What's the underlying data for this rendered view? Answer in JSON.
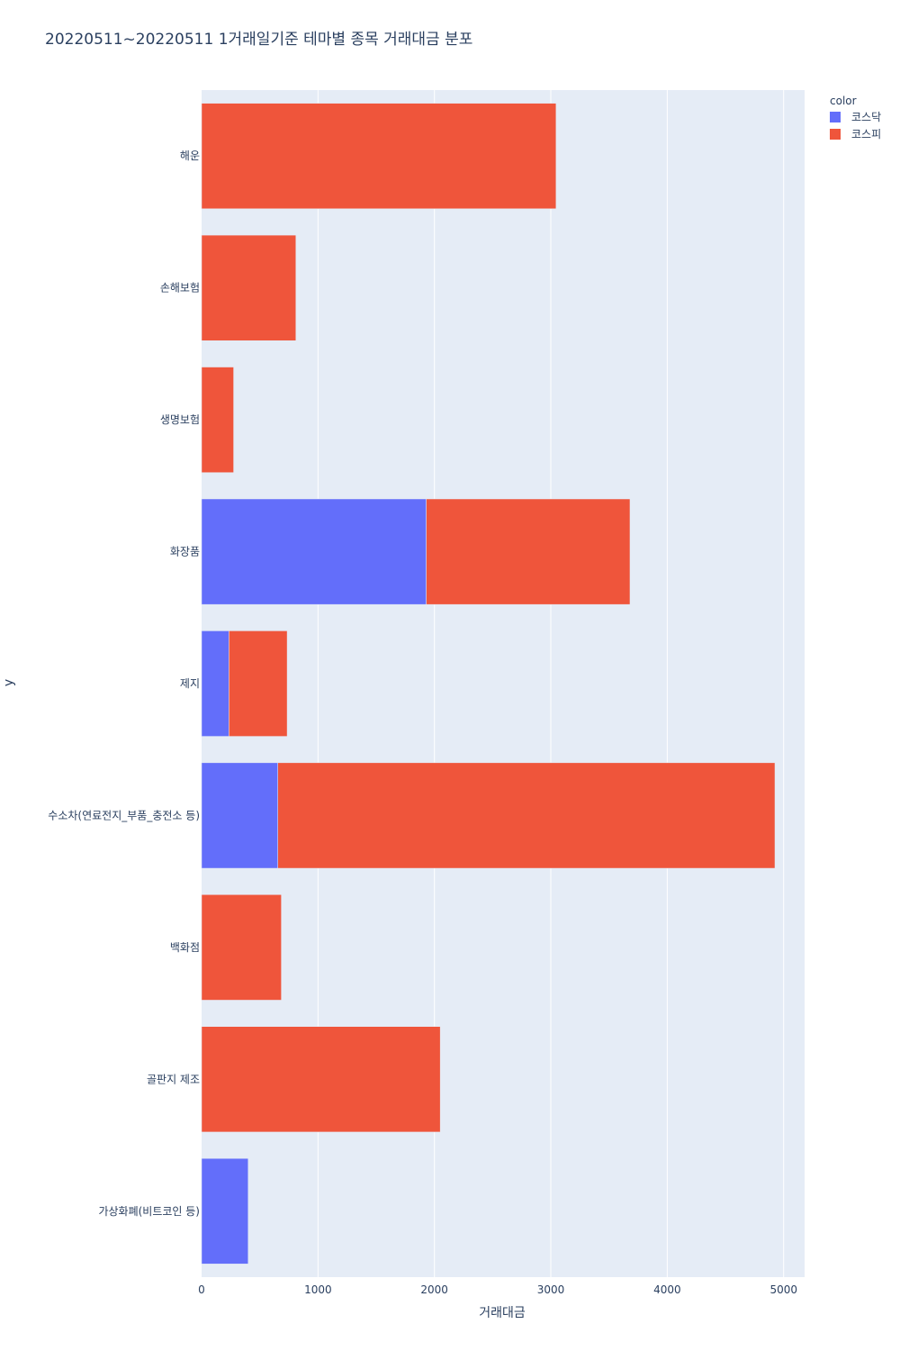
{
  "chart_data": {
    "type": "bar",
    "orientation": "horizontal",
    "barmode": "stack",
    "title": "20220511~20220511 1거래일기준 테마별 종목 거래대금 분포",
    "xlabel": "거래대금",
    "ylabel": "y",
    "xlim": [
      0,
      5180
    ],
    "xticks": [
      0,
      1000,
      2000,
      3000,
      4000,
      5000
    ],
    "grid": true,
    "legend_title": "color",
    "legend_position": "top-right",
    "categories": [
      "해운",
      "손해보험",
      "생명보험",
      "화장품",
      "제지",
      "수소차(연료전지_부품_충전소 등)",
      "백화점",
      "골판지 제조",
      "가상화폐(비트코인 등)"
    ],
    "series": [
      {
        "name": "코스닥",
        "color": "#636efa",
        "values": [
          0,
          0,
          0,
          1930,
          235,
          655,
          0,
          0,
          400
        ]
      },
      {
        "name": "코스피",
        "color": "#ef553b",
        "values": [
          3045,
          810,
          275,
          1750,
          500,
          4270,
          685,
          2050,
          0
        ]
      }
    ]
  }
}
